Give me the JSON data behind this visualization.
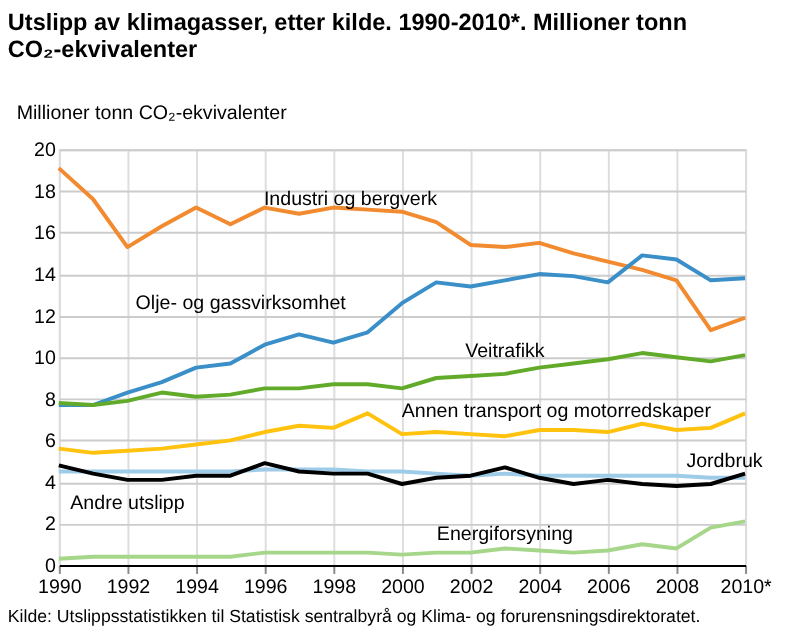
{
  "chart_data": {
    "type": "line",
    "title": "Utslipp av klimagasser, etter kilde. 1990-2010*. Millioner tonn CO₂-ekvivalenter",
    "ylabel": "Millioner tonn CO₂-ekvivalenter",
    "x": [
      1990,
      1991,
      1992,
      1993,
      1994,
      1995,
      1996,
      1997,
      1998,
      1999,
      2000,
      2001,
      2002,
      2003,
      2004,
      2005,
      2006,
      2007,
      2008,
      2009,
      2010
    ],
    "xlim": [
      1990,
      2010
    ],
    "xticks": [
      1990,
      1992,
      1994,
      1996,
      1998,
      2000,
      2002,
      2004,
      2006,
      2008,
      {
        "value": 2010,
        "label": "2010*"
      }
    ],
    "ylim": [
      0,
      20
    ],
    "yticks": [
      0,
      2,
      4,
      6,
      8,
      10,
      12,
      14,
      16,
      18,
      20
    ],
    "grid": true,
    "legend": false,
    "marker": "none",
    "line_style": "solid",
    "series": [
      {
        "name": "Industri og bergverk",
        "color": "#f28a30",
        "values": [
          19.1,
          17.6,
          15.3,
          16.3,
          17.2,
          16.4,
          17.2,
          16.9,
          17.2,
          17.1,
          17.0,
          16.5,
          15.4,
          15.3,
          15.5,
          15.0,
          14.6,
          14.2,
          13.7,
          11.3,
          11.9
        ]
      },
      {
        "name": "Olje- og gassvirksomhet",
        "color": "#3a8fc8",
        "values": [
          7.7,
          7.7,
          8.3,
          8.8,
          9.5,
          9.7,
          10.6,
          11.1,
          10.7,
          11.2,
          12.6,
          13.6,
          13.4,
          13.7,
          14.0,
          13.9,
          13.6,
          14.9,
          14.7,
          13.7,
          13.8
        ]
      },
      {
        "name": "Veitrafikk",
        "color": "#62ab2a",
        "values": [
          7.8,
          7.7,
          7.9,
          8.3,
          8.1,
          8.2,
          8.5,
          8.5,
          8.7,
          8.7,
          8.5,
          9.0,
          9.1,
          9.2,
          9.5,
          9.7,
          9.9,
          10.2,
          10.0,
          9.8,
          10.1
        ]
      },
      {
        "name": "Annen transport og motorredskaper",
        "color": "#ffc20e",
        "values": [
          5.6,
          5.4,
          5.5,
          5.6,
          5.8,
          6.0,
          6.4,
          6.7,
          6.6,
          7.3,
          6.3,
          6.4,
          6.3,
          6.2,
          6.5,
          6.5,
          6.4,
          6.8,
          6.5,
          6.6,
          7.3
        ]
      },
      {
        "name": "Jordbruk",
        "color": "#9dcbe8",
        "values": [
          4.5,
          4.5,
          4.5,
          4.5,
          4.5,
          4.5,
          4.6,
          4.6,
          4.6,
          4.5,
          4.5,
          4.4,
          4.3,
          4.4,
          4.3,
          4.3,
          4.3,
          4.3,
          4.3,
          4.2,
          4.2
        ]
      },
      {
        "name": "Andre utslipp",
        "color": "#000000",
        "values": [
          4.8,
          4.4,
          4.1,
          4.1,
          4.3,
          4.3,
          4.9,
          4.5,
          4.4,
          4.4,
          3.9,
          4.2,
          4.3,
          4.7,
          4.2,
          3.9,
          4.1,
          3.9,
          3.8,
          3.9,
          4.4
        ]
      },
      {
        "name": "Energiforsyning",
        "color": "#a6d68a",
        "values": [
          0.3,
          0.4,
          0.4,
          0.4,
          0.4,
          0.4,
          0.6,
          0.6,
          0.6,
          0.6,
          0.5,
          0.6,
          0.6,
          0.8,
          0.7,
          0.6,
          0.7,
          1.0,
          0.8,
          1.8,
          2.1
        ]
      }
    ],
    "annotations": [
      "Kilde: Utslippsstatistikken til Statistisk sentralbyrå og Klima- og forurensningsdirektoratet."
    ]
  }
}
